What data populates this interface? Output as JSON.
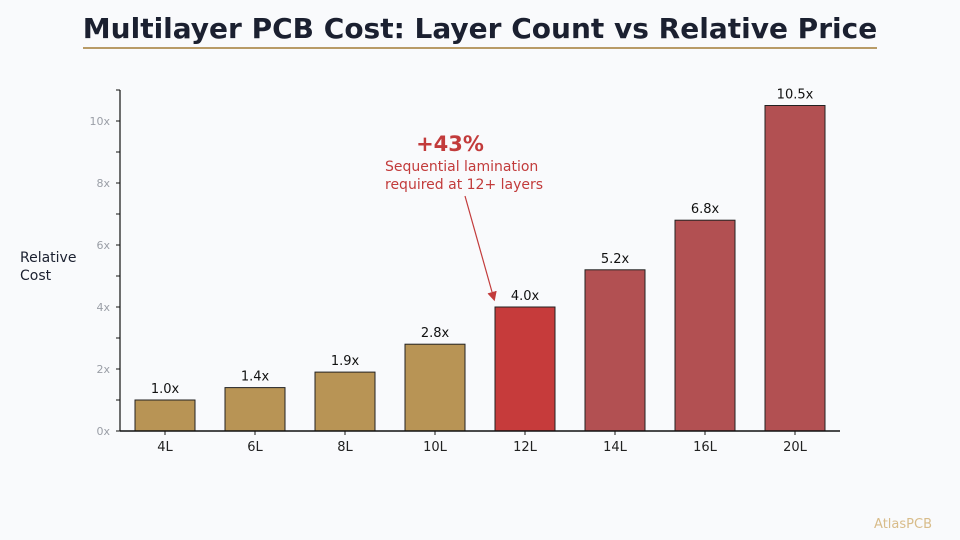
{
  "colors": {
    "gold": "#b89455",
    "red_highlight": "#c63b3b",
    "red_muted": "#b25052",
    "annotation": "#c23b3b",
    "rule": "#b89b67",
    "brand": "#d8bc8a"
  },
  "brand": "AtlasPCB",
  "chart_data": {
    "type": "bar",
    "title": "Multilayer PCB Cost: Layer Count vs Relative Price",
    "xlabel": "",
    "ylabel": "Relative\nCost",
    "categories": [
      "4L",
      "6L",
      "8L",
      "10L",
      "12L",
      "14L",
      "16L",
      "20L"
    ],
    "values": [
      1.0,
      1.4,
      1.9,
      2.8,
      4.0,
      5.2,
      6.8,
      10.5
    ],
    "value_labels": [
      "1.0x",
      "1.4x",
      "1.9x",
      "2.8x",
      "4.0x",
      "5.2x",
      "6.8x",
      "10.5x"
    ],
    "bar_colors": [
      "gold",
      "gold",
      "gold",
      "gold",
      "red_highlight",
      "red_muted",
      "red_muted",
      "red_muted"
    ],
    "ylim": [
      0,
      11
    ],
    "yticks": [
      0,
      2,
      4,
      6,
      8,
      10
    ],
    "ytick_labels": [
      "0x",
      "2x",
      "4x",
      "6x",
      "8x",
      "10x"
    ],
    "grid": false,
    "annotation": {
      "headline": "+43%",
      "line1": "Sequential lamination",
      "line2": "required at 12+ layers",
      "target_category": "12L"
    }
  }
}
